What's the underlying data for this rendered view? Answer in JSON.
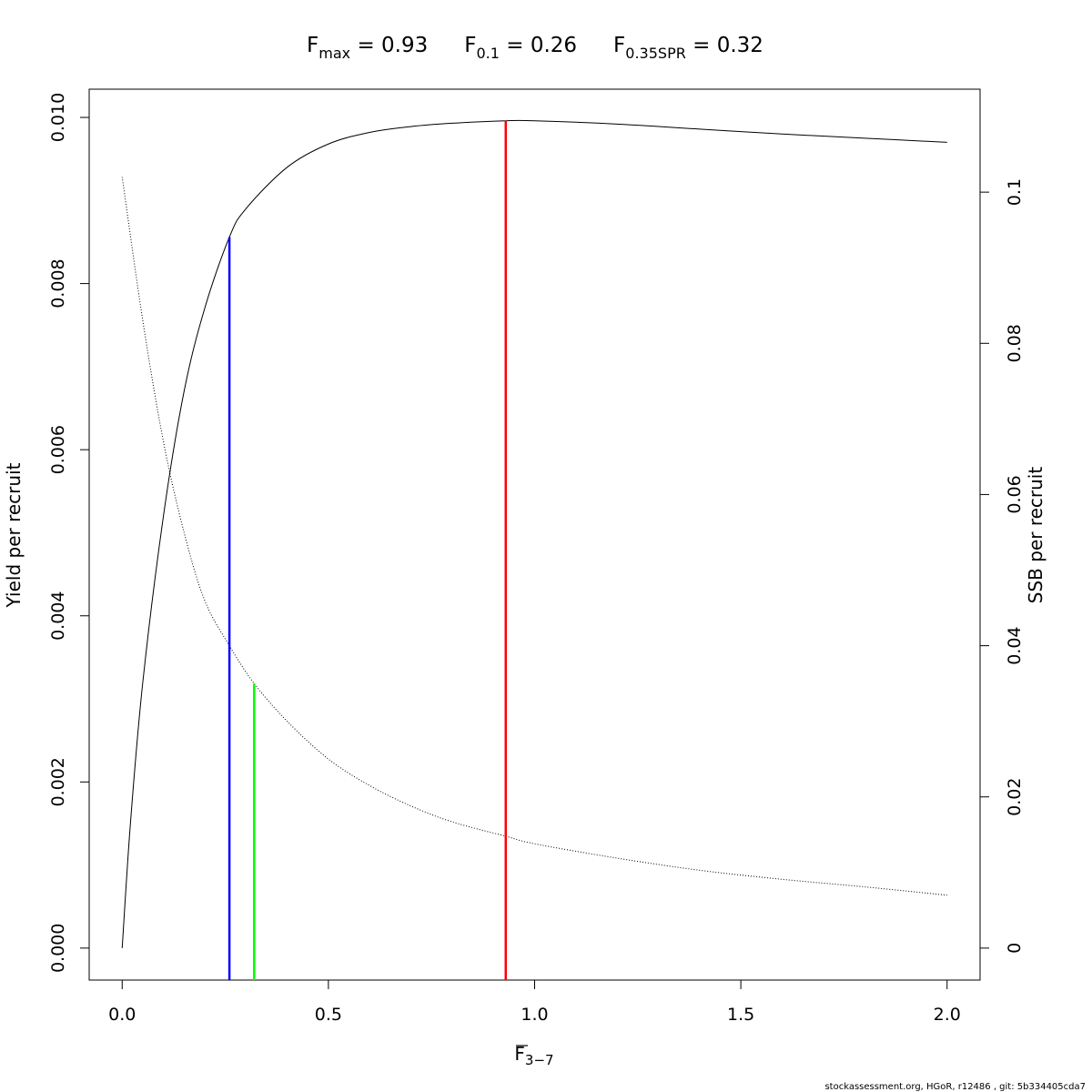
{
  "chart_data": {
    "type": "line",
    "title": {
      "fmax_base": "F",
      "fmax_sub": "max",
      "fmax_value": " = 0.93",
      "f01_base": "F",
      "f01_sub": "0.1",
      "f01_value": " = 0.26",
      "fspr_base": "F",
      "fspr_sub": "0.35SPR",
      "fspr_value": " = 0.32"
    },
    "xlabel_base": "F",
    "xlabel_sub": "3−7",
    "ylabel_left": "Yield per recruit",
    "ylabel_right": "SSB per recruit",
    "xlim": [
      -0.08,
      2.08
    ],
    "ylim_left": [
      -0.000385,
      0.01034
    ],
    "ylim_right": [
      -0.00423,
      0.11362
    ],
    "x_ticks": [
      "0.0",
      "0.5",
      "1.0",
      "1.5",
      "2.0"
    ],
    "y_left_ticks": [
      "0.000",
      "0.002",
      "0.004",
      "0.006",
      "0.008",
      "0.010"
    ],
    "y_right_ticks": [
      "0",
      "0.02",
      "0.04",
      "0.06",
      "0.08",
      "0.1"
    ],
    "series": [
      {
        "axis": "left",
        "style": "solid",
        "color": "#000000",
        "x": [
          0,
          0.02,
          0.05,
          0.1,
          0.15,
          0.2,
          0.26,
          0.3,
          0.4,
          0.5,
          0.6,
          0.7,
          0.8,
          0.93,
          1.0,
          1.2,
          1.4,
          1.6,
          1.8,
          2.0
        ],
        "y": [
          0,
          0.0015,
          0.0032,
          0.0052,
          0.0067,
          0.0077,
          0.00856,
          0.0089,
          0.0094,
          0.00968,
          0.00982,
          0.00989,
          0.00993,
          0.00996,
          0.00996,
          0.00992,
          0.00986,
          0.0098,
          0.00975,
          0.0097
        ]
      },
      {
        "axis": "right",
        "style": "dotted",
        "color": "#000000",
        "x": [
          0,
          0.05,
          0.1,
          0.15,
          0.2,
          0.26,
          0.32,
          0.4,
          0.5,
          0.6,
          0.7,
          0.8,
          0.93,
          1.0,
          1.2,
          1.4,
          1.6,
          1.8,
          2.0
        ],
        "y": [
          0.102,
          0.083,
          0.067,
          0.055,
          0.046,
          0.04,
          0.035,
          0.03,
          0.025,
          0.0215,
          0.0188,
          0.0167,
          0.0148,
          0.0138,
          0.0119,
          0.0103,
          0.0091,
          0.0081,
          0.007
        ]
      }
    ],
    "reference_lines": [
      {
        "name": "Fmax",
        "x": 0.93,
        "y_top": 0.00996,
        "axis": "left",
        "color": "#ff0000"
      },
      {
        "name": "F0.1",
        "x": 0.26,
        "y_top": 0.00856,
        "axis": "left",
        "color": "#0000ff"
      },
      {
        "name": "F0.35SPR",
        "x": 0.32,
        "y_top": 0.035,
        "axis": "right",
        "color": "#00ff00"
      }
    ],
    "grid": false,
    "legend": "none"
  },
  "footer": {
    "credit": "stockassessment.org, HGoR, r12486 , git: 5b334405cda7"
  }
}
